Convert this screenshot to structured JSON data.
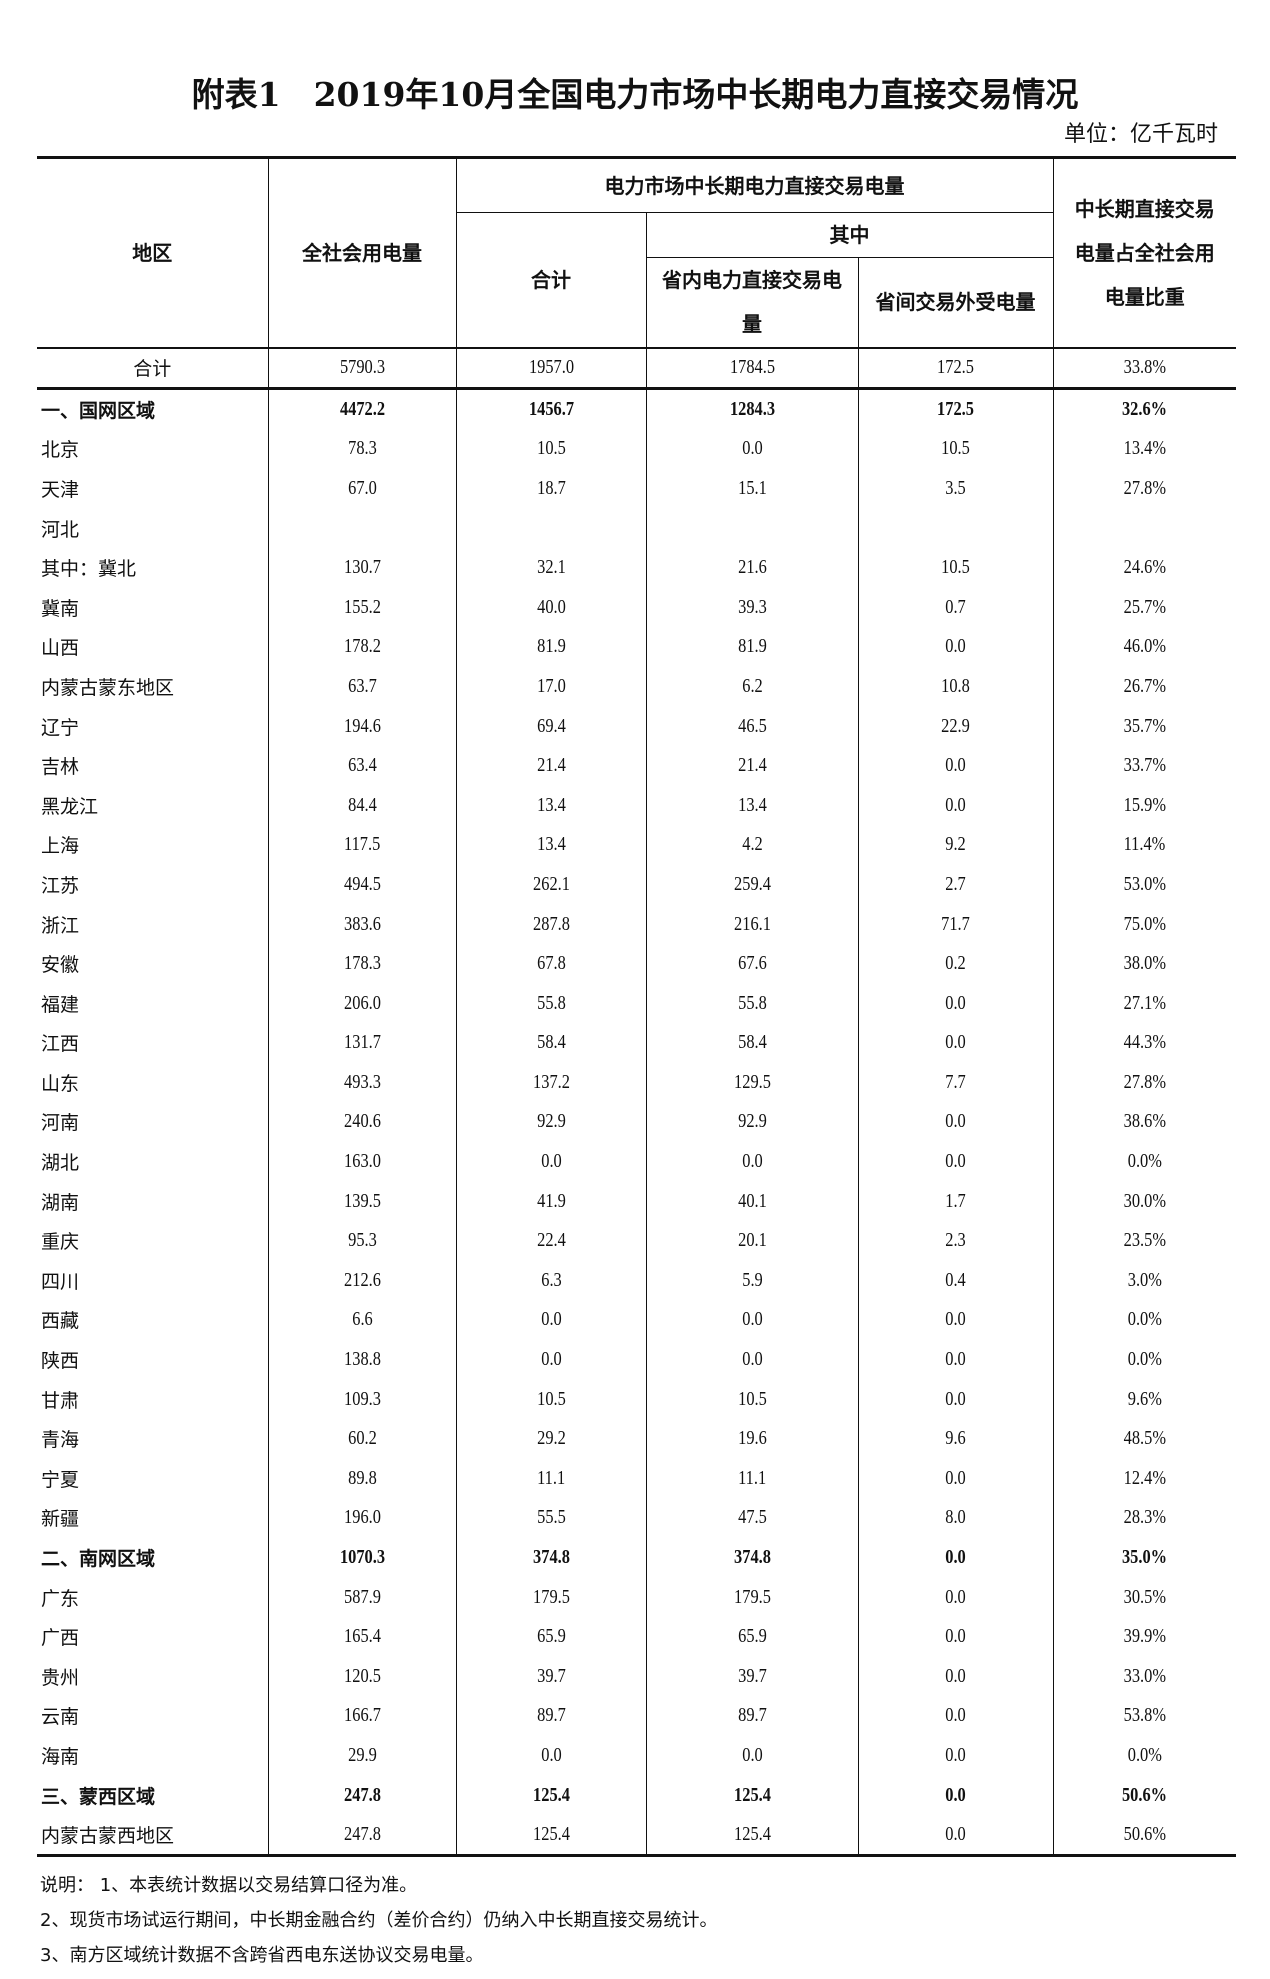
{
  "title": "附表1　2019年10月全国电力市场中长期电力直接交易情况",
  "unit": "单位：亿千瓦时",
  "header": {
    "region": "地区",
    "total_consumption": "全社会用电量",
    "direct_trade": "电力市场中长期电力直接交易电量",
    "subtotal": "合计",
    "of_which": "其中",
    "intra_province": "省内电力直接交易电量",
    "inter_province": "省间交易外受电量",
    "ratio": "中长期直接交易电量占全社会用电量比重"
  },
  "rows": [
    {
      "region": "合计",
      "total": "5790.3",
      "sum": "1957.0",
      "intra": "1784.5",
      "inter": "172.5",
      "ratio": "33.8%",
      "type": "total"
    },
    {
      "region": "一、国网区域",
      "total": "4472.2",
      "sum": "1456.7",
      "intra": "1284.3",
      "inter": "172.5",
      "ratio": "32.6%",
      "type": "bold"
    },
    {
      "region": "北京",
      "total": "78.3",
      "sum": "10.5",
      "intra": "0.0",
      "inter": "10.5",
      "ratio": "13.4%"
    },
    {
      "region": "天津",
      "total": "67.0",
      "sum": "18.7",
      "intra": "15.1",
      "inter": "3.5",
      "ratio": "27.8%"
    },
    {
      "region": "河北",
      "total": "",
      "sum": "",
      "intra": "",
      "inter": "",
      "ratio": ""
    },
    {
      "region": "其中：冀北",
      "total": "130.7",
      "sum": "32.1",
      "intra": "21.6",
      "inter": "10.5",
      "ratio": "24.6%"
    },
    {
      "region": "冀南",
      "total": "155.2",
      "sum": "40.0",
      "intra": "39.3",
      "inter": "0.7",
      "ratio": "25.7%"
    },
    {
      "region": "山西",
      "total": "178.2",
      "sum": "81.9",
      "intra": "81.9",
      "inter": "0.0",
      "ratio": "46.0%"
    },
    {
      "region": "内蒙古蒙东地区",
      "total": "63.7",
      "sum": "17.0",
      "intra": "6.2",
      "inter": "10.8",
      "ratio": "26.7%"
    },
    {
      "region": "辽宁",
      "total": "194.6",
      "sum": "69.4",
      "intra": "46.5",
      "inter": "22.9",
      "ratio": "35.7%"
    },
    {
      "region": "吉林",
      "total": "63.4",
      "sum": "21.4",
      "intra": "21.4",
      "inter": "0.0",
      "ratio": "33.7%"
    },
    {
      "region": "黑龙江",
      "total": "84.4",
      "sum": "13.4",
      "intra": "13.4",
      "inter": "0.0",
      "ratio": "15.9%"
    },
    {
      "region": "上海",
      "total": "117.5",
      "sum": "13.4",
      "intra": "4.2",
      "inter": "9.2",
      "ratio": "11.4%"
    },
    {
      "region": "江苏",
      "total": "494.5",
      "sum": "262.1",
      "intra": "259.4",
      "inter": "2.7",
      "ratio": "53.0%"
    },
    {
      "region": "浙江",
      "total": "383.6",
      "sum": "287.8",
      "intra": "216.1",
      "inter": "71.7",
      "ratio": "75.0%"
    },
    {
      "region": "安徽",
      "total": "178.3",
      "sum": "67.8",
      "intra": "67.6",
      "inter": "0.2",
      "ratio": "38.0%"
    },
    {
      "region": "福建",
      "total": "206.0",
      "sum": "55.8",
      "intra": "55.8",
      "inter": "0.0",
      "ratio": "27.1%"
    },
    {
      "region": "江西",
      "total": "131.7",
      "sum": "58.4",
      "intra": "58.4",
      "inter": "0.0",
      "ratio": "44.3%"
    },
    {
      "region": "山东",
      "total": "493.3",
      "sum": "137.2",
      "intra": "129.5",
      "inter": "7.7",
      "ratio": "27.8%"
    },
    {
      "region": "河南",
      "total": "240.6",
      "sum": "92.9",
      "intra": "92.9",
      "inter": "0.0",
      "ratio": "38.6%"
    },
    {
      "region": "湖北",
      "total": "163.0",
      "sum": "0.0",
      "intra": "0.0",
      "inter": "0.0",
      "ratio": "0.0%"
    },
    {
      "region": "湖南",
      "total": "139.5",
      "sum": "41.9",
      "intra": "40.1",
      "inter": "1.7",
      "ratio": "30.0%"
    },
    {
      "region": "重庆",
      "total": "95.3",
      "sum": "22.4",
      "intra": "20.1",
      "inter": "2.3",
      "ratio": "23.5%"
    },
    {
      "region": "四川",
      "total": "212.6",
      "sum": "6.3",
      "intra": "5.9",
      "inter": "0.4",
      "ratio": "3.0%"
    },
    {
      "region": "西藏",
      "total": "6.6",
      "sum": "0.0",
      "intra": "0.0",
      "inter": "0.0",
      "ratio": "0.0%"
    },
    {
      "region": "陕西",
      "total": "138.8",
      "sum": "0.0",
      "intra": "0.0",
      "inter": "0.0",
      "ratio": "0.0%"
    },
    {
      "region": "甘肃",
      "total": "109.3",
      "sum": "10.5",
      "intra": "10.5",
      "inter": "0.0",
      "ratio": "9.6%"
    },
    {
      "region": "青海",
      "total": "60.2",
      "sum": "29.2",
      "intra": "19.6",
      "inter": "9.6",
      "ratio": "48.5%"
    },
    {
      "region": "宁夏",
      "total": "89.8",
      "sum": "11.1",
      "intra": "11.1",
      "inter": "0.0",
      "ratio": "12.4%"
    },
    {
      "region": "新疆",
      "total": "196.0",
      "sum": "55.5",
      "intra": "47.5",
      "inter": "8.0",
      "ratio": "28.3%"
    },
    {
      "region": "二、南网区域",
      "total": "1070.3",
      "sum": "374.8",
      "intra": "374.8",
      "inter": "0.0",
      "ratio": "35.0%",
      "type": "bold"
    },
    {
      "region": "广东",
      "total": "587.9",
      "sum": "179.5",
      "intra": "179.5",
      "inter": "0.0",
      "ratio": "30.5%"
    },
    {
      "region": "广西",
      "total": "165.4",
      "sum": "65.9",
      "intra": "65.9",
      "inter": "0.0",
      "ratio": "39.9%"
    },
    {
      "region": "贵州",
      "total": "120.5",
      "sum": "39.7",
      "intra": "39.7",
      "inter": "0.0",
      "ratio": "33.0%"
    },
    {
      "region": "云南",
      "total": "166.7",
      "sum": "89.7",
      "intra": "89.7",
      "inter": "0.0",
      "ratio": "53.8%"
    },
    {
      "region": "海南",
      "total": "29.9",
      "sum": "0.0",
      "intra": "0.0",
      "inter": "0.0",
      "ratio": "0.0%"
    },
    {
      "region": "三、蒙西区域",
      "total": "247.8",
      "sum": "125.4",
      "intra": "125.4",
      "inter": "0.0",
      "ratio": "50.6%",
      "type": "bold"
    },
    {
      "region": "内蒙古蒙西地区",
      "total": "247.8",
      "sum": "125.4",
      "intra": "125.4",
      "inter": "0.0",
      "ratio": "50.6%"
    }
  ],
  "notes": [
    "说明：  1、本表统计数据以交易结算口径为准。",
    "2、现货市场试运行期间，中长期金融合约（差价合约）仍纳入中长期直接交易统计。",
    "3、南方区域统计数据不含跨省西电东送协议交易电量。"
  ]
}
